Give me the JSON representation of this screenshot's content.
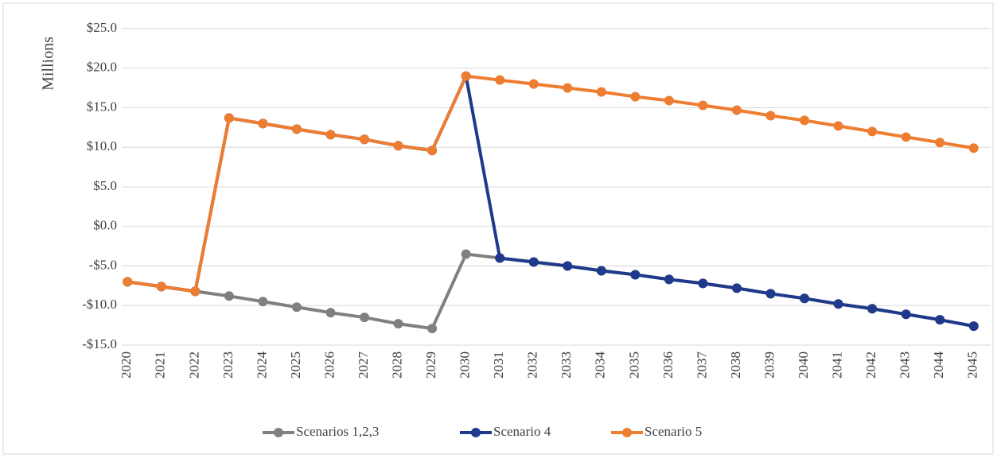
{
  "chart_data": {
    "type": "line",
    "y_label": "Millions",
    "categories": [
      "2020",
      "2021",
      "2022",
      "2023",
      "2024",
      "2025",
      "2026",
      "2027",
      "2028",
      "2029",
      "2030",
      "2031",
      "2032",
      "2033",
      "2034",
      "2035",
      "2036",
      "2037",
      "2038",
      "2039",
      "2040",
      "2041",
      "2042",
      "2043",
      "2044",
      "2045"
    ],
    "series": [
      {
        "name": "Scenarios 1,2,3",
        "color": "#808080",
        "values": [
          -7.0,
          -7.6,
          -8.2,
          -8.8,
          -9.5,
          -10.2,
          -10.9,
          -11.5,
          -12.3,
          -12.9,
          -3.5,
          -4.0,
          -4.5,
          -5.0,
          -5.6,
          -6.1,
          -6.7,
          -7.2,
          -7.8,
          -8.5,
          -9.1,
          -9.8,
          -10.4,
          -11.1,
          -11.8,
          -12.6
        ]
      },
      {
        "name": "Scenario 4",
        "color": "#1f3a8a",
        "values": [
          -7.0,
          -7.6,
          -8.2,
          13.7,
          13.0,
          12.3,
          11.6,
          11.0,
          10.2,
          9.6,
          19.0,
          -4.0,
          -4.5,
          -5.0,
          -5.6,
          -6.1,
          -6.7,
          -7.2,
          -7.8,
          -8.5,
          -9.1,
          -9.8,
          -10.4,
          -11.1,
          -11.8,
          -12.6
        ]
      },
      {
        "name": "Scenario 5",
        "color": "#ed7d31",
        "values": [
          -7.0,
          -7.6,
          -8.2,
          13.7,
          13.0,
          12.3,
          11.6,
          11.0,
          10.2,
          9.6,
          19.0,
          18.5,
          18.0,
          17.5,
          17.0,
          16.4,
          15.9,
          15.3,
          14.7,
          14.0,
          13.4,
          12.7,
          12.0,
          11.3,
          10.6,
          9.9
        ]
      }
    ],
    "ylim": [
      -15,
      25
    ],
    "yticks": [
      {
        "value": 25,
        "label": "$25.0"
      },
      {
        "value": 20,
        "label": "$20.0"
      },
      {
        "value": 15,
        "label": "$15.0"
      },
      {
        "value": 10,
        "label": "$10.0"
      },
      {
        "value": 5,
        "label": "$5.0"
      },
      {
        "value": 0,
        "label": "$0.0"
      },
      {
        "value": -5,
        "label": "-$5.0"
      },
      {
        "value": -10,
        "label": "-$10.0"
      },
      {
        "value": -15,
        "label": "-$15.0"
      }
    ],
    "grid": true,
    "legend": "bottom"
  }
}
